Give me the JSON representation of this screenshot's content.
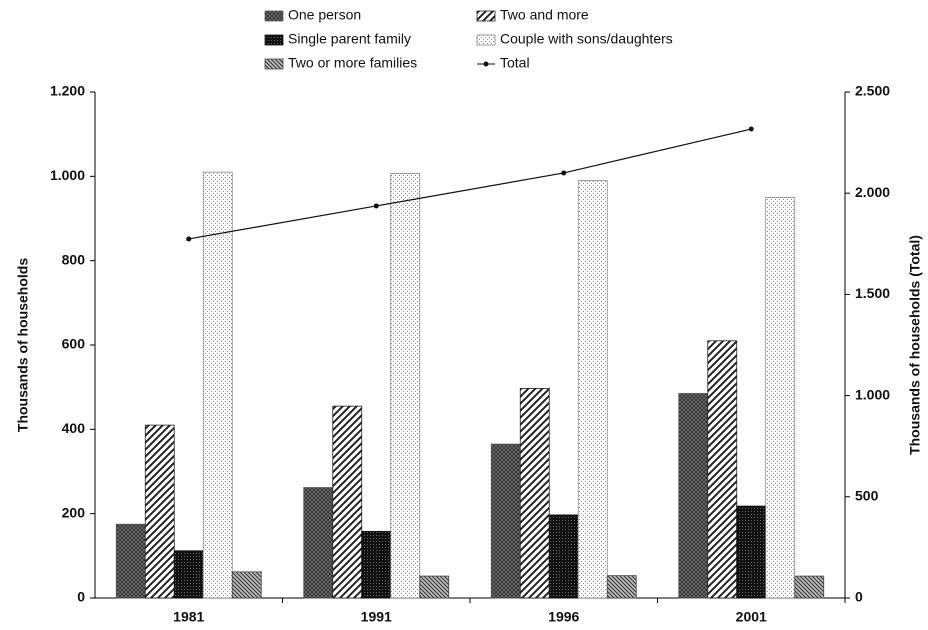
{
  "chart_data": {
    "type": "bar",
    "categories": [
      "1981",
      "1991",
      "1996",
      "2001"
    ],
    "ylabel": "Thousands of households",
    "y2label": "Thousands of households (Total)",
    "ylim": [
      0,
      1200
    ],
    "yticks": [
      0,
      200,
      400,
      600,
      800,
      {
        "value": 1000,
        "label": "1.000"
      },
      {
        "value": 1200,
        "label": "1.200"
      }
    ],
    "y2lim": [
      0,
      2500
    ],
    "y2ticks": [
      0,
      500,
      {
        "value": 1000,
        "label": "1.000"
      },
      {
        "value": 1500,
        "label": "1.500"
      },
      {
        "value": 2000,
        "label": "2.000"
      },
      {
        "value": 2500,
        "label": "2.500"
      }
    ],
    "series": [
      {
        "name": "One person",
        "color": "#555555",
        "pattern": "crosshatch",
        "values": [
          175,
          262,
          365,
          485
        ]
      },
      {
        "name": "Two and more",
        "color": "#222222",
        "pattern": "diagonal",
        "values": [
          410,
          455,
          497,
          610
        ]
      },
      {
        "name": "Single parent family",
        "color": "#111111",
        "pattern": "dense",
        "values": [
          112,
          158,
          197,
          218
        ]
      },
      {
        "name": "Couple with sons/daughters",
        "color": "#888888",
        "pattern": "dots",
        "values": [
          1010,
          1007,
          990,
          950
        ]
      },
      {
        "name": "Two or more families",
        "color": "#444444",
        "pattern": "hatch",
        "values": [
          62,
          52,
          53,
          52
        ]
      },
      {
        "name": "Total",
        "color": "#111111",
        "type": "line",
        "axis": "y2",
        "values": [
          1774,
          1937,
          2100,
          2317
        ]
      }
    ]
  }
}
